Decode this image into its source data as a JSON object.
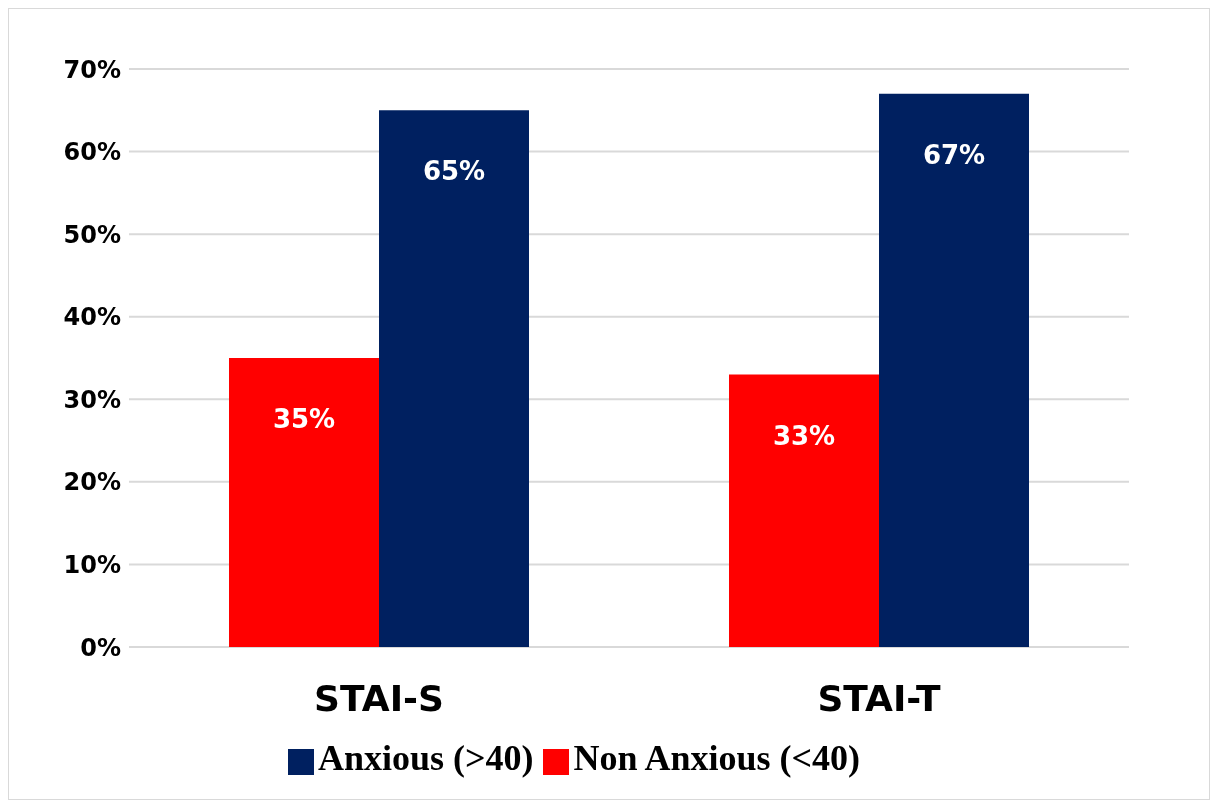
{
  "chart_data": {
    "type": "bar",
    "categories": [
      "STAI-S",
      "STAI-T"
    ],
    "series": [
      {
        "name": "Non Anxious (<40)",
        "color": "#ff0000",
        "values": [
          35,
          33
        ],
        "value_labels": [
          "35%",
          "33%"
        ]
      },
      {
        "name": "Anxious (>40)",
        "color": "#002060",
        "values": [
          65,
          67
        ],
        "value_labels": [
          "65%",
          "67%"
        ]
      }
    ],
    "ylim": [
      0,
      70
    ],
    "yticks": [
      {
        "value": 0,
        "label": "0%"
      },
      {
        "value": 10,
        "label": "10%"
      },
      {
        "value": 20,
        "label": "20%"
      },
      {
        "value": 30,
        "label": "30%"
      },
      {
        "value": 40,
        "label": "40%"
      },
      {
        "value": 50,
        "label": "50%"
      },
      {
        "value": 60,
        "label": "60%"
      },
      {
        "value": 70,
        "label": "70%"
      }
    ],
    "grid": "y",
    "legend": "bottom"
  }
}
